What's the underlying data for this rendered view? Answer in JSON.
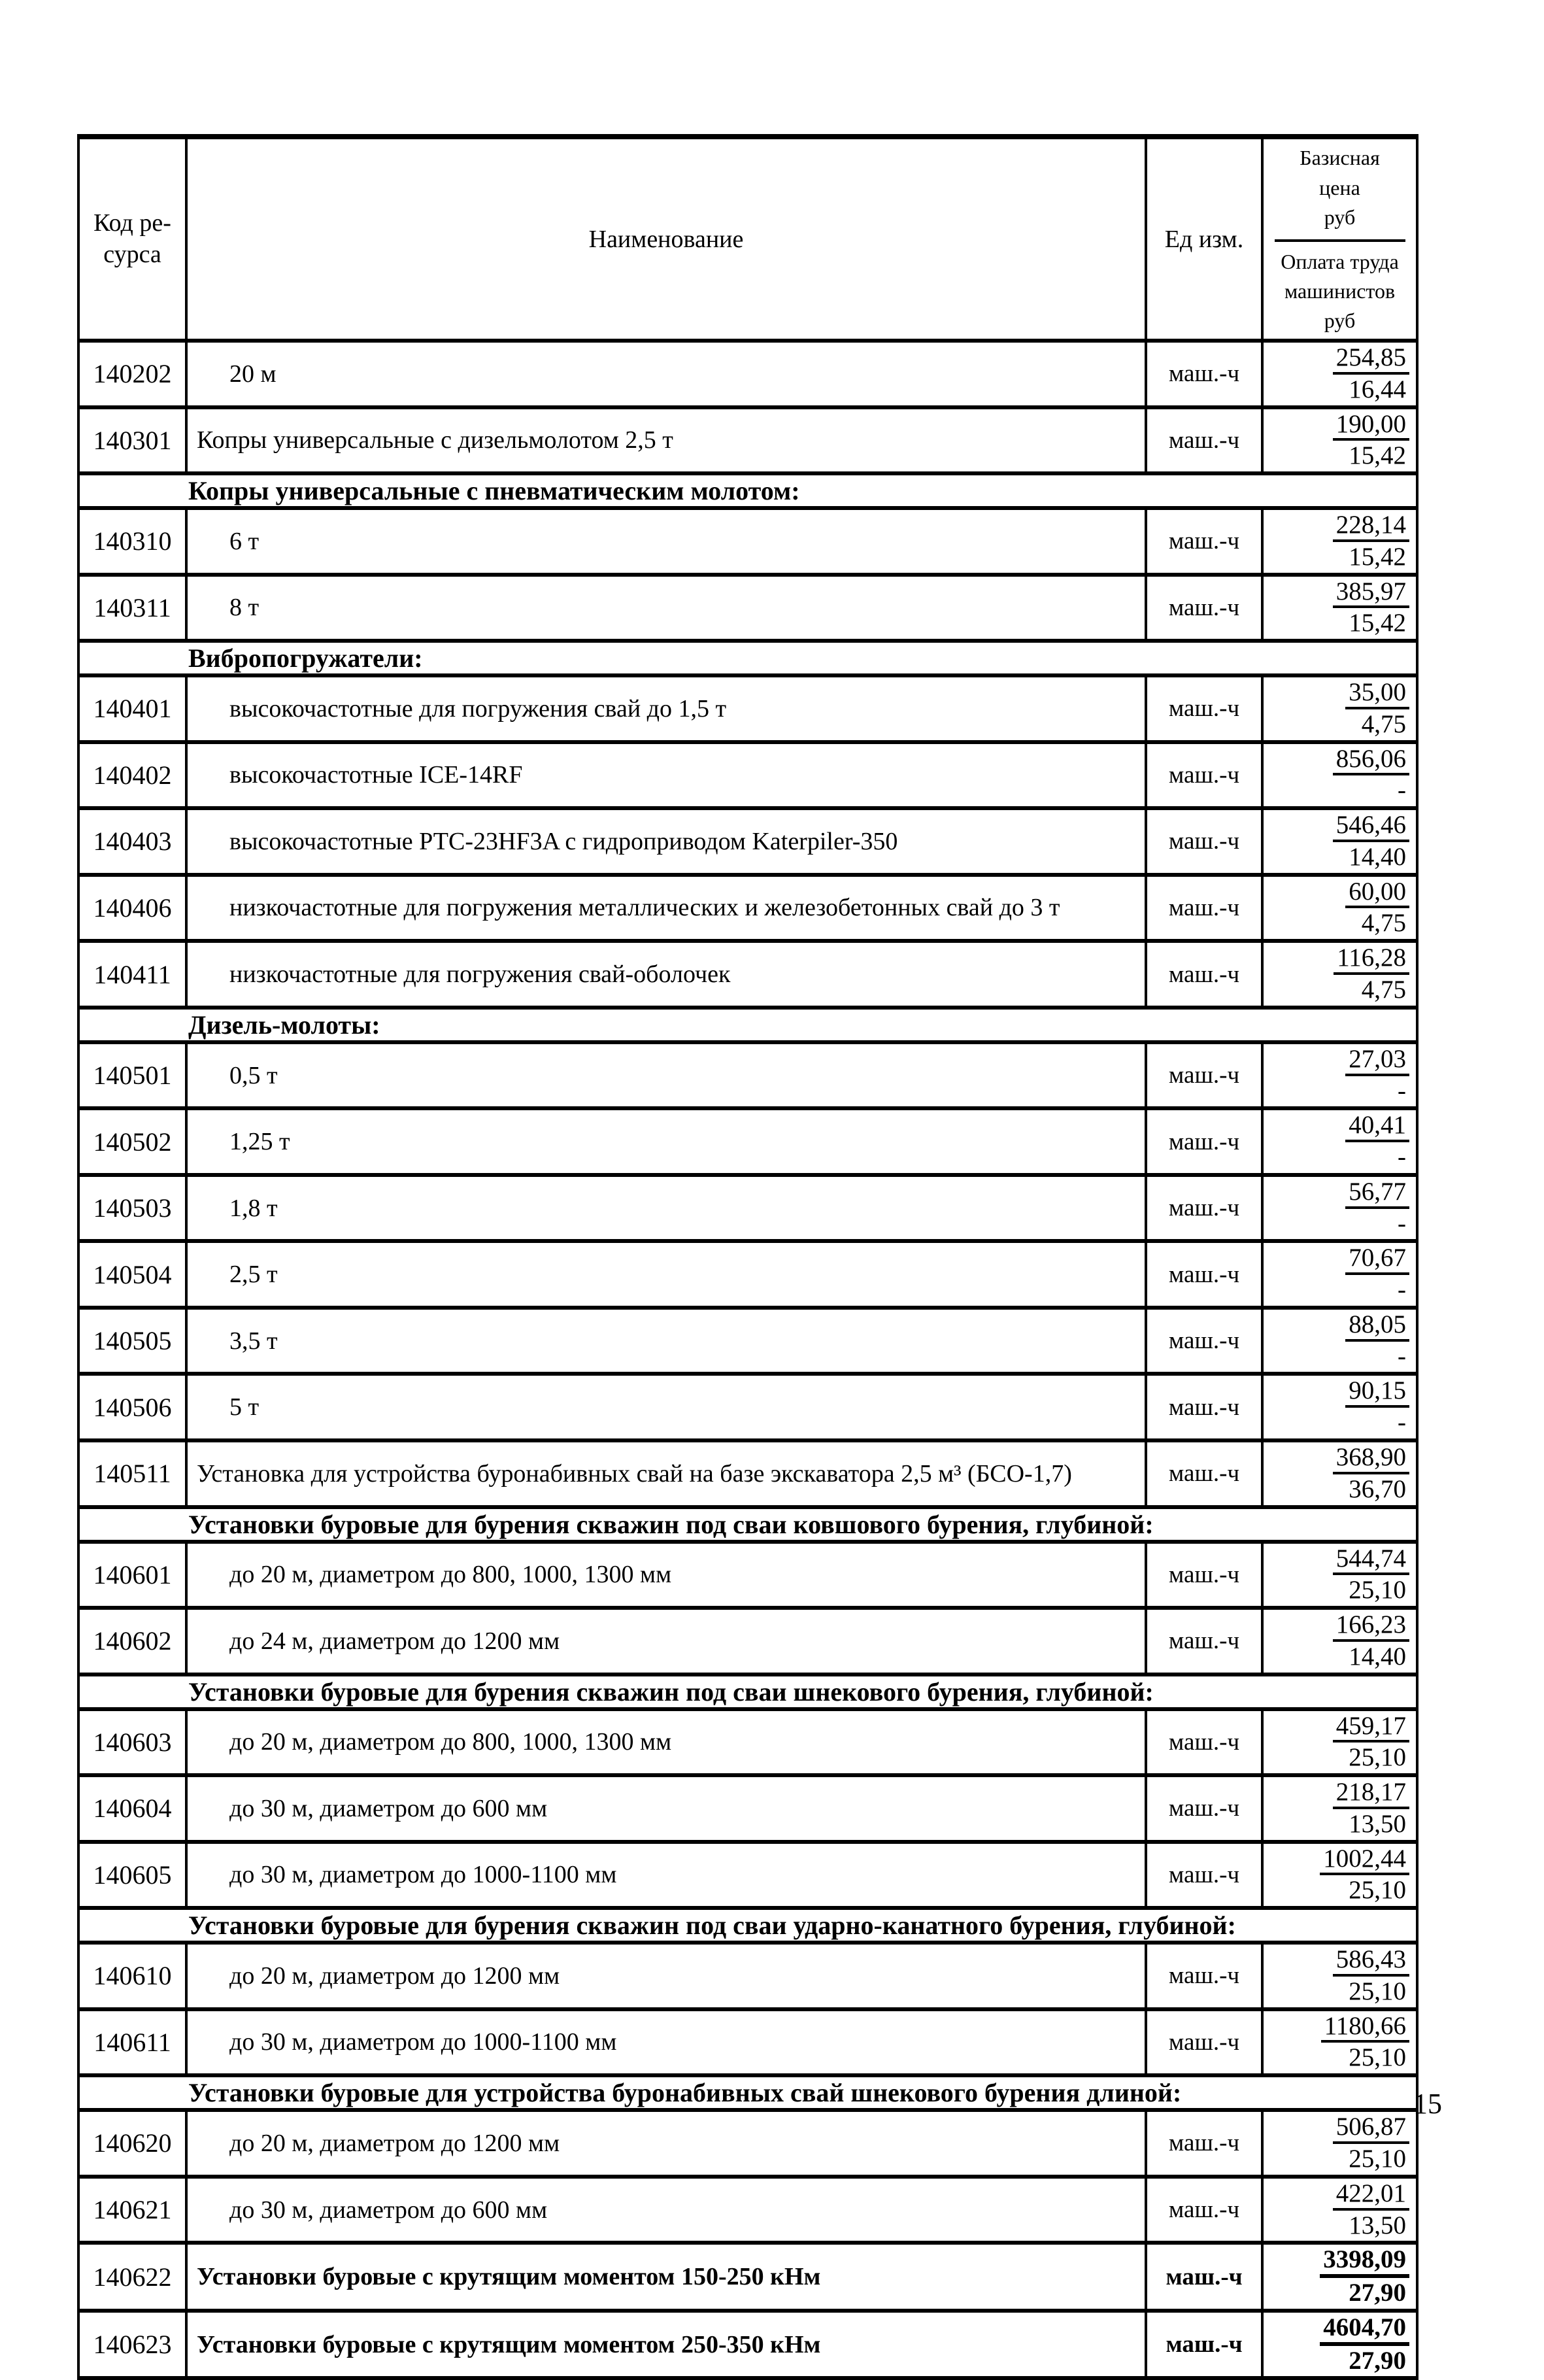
{
  "page_number": "15",
  "table": {
    "headers": {
      "code": "Код ре-\nсурса",
      "name": "Наименование",
      "unit": "Ед изм.",
      "price_top": "Базисная\nцена\nруб",
      "price_bottom": "Оплата труда\nмашинистов\nруб"
    },
    "rows": [
      {
        "type": "item",
        "code": "140202",
        "name": "20 м",
        "indent": true,
        "bold": false,
        "unit": "маш.-ч",
        "base_price": "254,85",
        "machinist_labor": "16,44"
      },
      {
        "type": "item",
        "code": "140301",
        "name": "Копры универсальные с дизельмолотом 2,5 т",
        "indent": false,
        "bold": false,
        "unit": "маш.-ч",
        "base_price": "190,00",
        "machinist_labor": "15,42"
      },
      {
        "type": "section",
        "name": "Копры универсальные с пневматическим молотом:"
      },
      {
        "type": "item",
        "code": "140310",
        "name": "6 т",
        "indent": true,
        "bold": false,
        "unit": "маш.-ч",
        "base_price": "228,14",
        "machinist_labor": "15,42"
      },
      {
        "type": "item",
        "code": "140311",
        "name": "8 т",
        "indent": true,
        "bold": false,
        "unit": "маш.-ч",
        "base_price": "385,97",
        "machinist_labor": "15,42"
      },
      {
        "type": "section",
        "name": "Вибропогружатели:"
      },
      {
        "type": "item",
        "code": "140401",
        "name": "высокочастотные для погружения свай до 1,5 т",
        "indent": true,
        "bold": false,
        "unit": "маш.-ч",
        "base_price": "35,00",
        "machinist_labor": "4,75"
      },
      {
        "type": "item",
        "code": "140402",
        "name": "высокочастотные ICE-14RF",
        "indent": true,
        "bold": false,
        "unit": "маш.-ч",
        "base_price": "856,06",
        "machinist_labor": "-"
      },
      {
        "type": "item",
        "code": "140403",
        "name": "высокочастотные РТС-23HF3A с гидроприводом Katerpiler-350",
        "indent": true,
        "bold": false,
        "unit": "маш.-ч",
        "base_price": "546,46",
        "machinist_labor": "14,40"
      },
      {
        "type": "item",
        "code": "140406",
        "name": "низкочастотные для погружения металлических и железобетонных свай до 3 т",
        "indent": true,
        "bold": false,
        "unit": "маш.-ч",
        "base_price": "60,00",
        "machinist_labor": "4,75"
      },
      {
        "type": "item",
        "code": "140411",
        "name": "низкочастотные для погружения свай-оболочек",
        "indent": true,
        "bold": false,
        "unit": "маш.-ч",
        "base_price": "116,28",
        "machinist_labor": "4,75"
      },
      {
        "type": "section",
        "name": "Дизель-молоты:"
      },
      {
        "type": "item",
        "code": "140501",
        "name": "0,5 т",
        "indent": true,
        "bold": false,
        "unit": "маш.-ч",
        "base_price": "27,03",
        "machinist_labor": "-"
      },
      {
        "type": "item",
        "code": "140502",
        "name": "1,25 т",
        "indent": true,
        "bold": false,
        "unit": "маш.-ч",
        "base_price": "40,41",
        "machinist_labor": "-"
      },
      {
        "type": "item",
        "code": "140503",
        "name": "1,8 т",
        "indent": true,
        "bold": false,
        "unit": "маш.-ч",
        "base_price": "56,77",
        "machinist_labor": "-"
      },
      {
        "type": "item",
        "code": "140504",
        "name": "2,5 т",
        "indent": true,
        "bold": false,
        "unit": "маш.-ч",
        "base_price": "70,67",
        "machinist_labor": "-"
      },
      {
        "type": "item",
        "code": "140505",
        "name": "3,5 т",
        "indent": true,
        "bold": false,
        "unit": "маш.-ч",
        "base_price": "88,05",
        "machinist_labor": "-"
      },
      {
        "type": "item",
        "code": "140506",
        "name": "5 т",
        "indent": true,
        "bold": false,
        "unit": "маш.-ч",
        "base_price": "90,15",
        "machinist_labor": "-"
      },
      {
        "type": "item",
        "code": "140511",
        "name": "Установка для устройства буронабивных свай на базе экскаватора 2,5 м³ (БСО-1,7)",
        "indent": false,
        "bold": false,
        "unit": "маш.-ч",
        "base_price": "368,90",
        "machinist_labor": "36,70"
      },
      {
        "type": "section",
        "name": "Установки буровые для бурения скважин под сваи ковшового бурения, глубиной:"
      },
      {
        "type": "item",
        "code": "140601",
        "name": "до 20 м, диаметром до 800, 1000, 1300 мм",
        "indent": true,
        "bold": false,
        "unit": "маш.-ч",
        "base_price": "544,74",
        "machinist_labor": "25,10"
      },
      {
        "type": "item",
        "code": "140602",
        "name": "до 24 м, диаметром до 1200 мм",
        "indent": true,
        "bold": false,
        "unit": "маш.-ч",
        "base_price": "166,23",
        "machinist_labor": "14,40"
      },
      {
        "type": "section",
        "name": "Установки буровые для бурения скважин под сваи шнекового бурения, глубиной:"
      },
      {
        "type": "item",
        "code": "140603",
        "name": "до 20 м, диаметром до 800, 1000, 1300 мм",
        "indent": true,
        "bold": false,
        "unit": "маш.-ч",
        "base_price": "459,17",
        "machinist_labor": "25,10"
      },
      {
        "type": "item",
        "code": "140604",
        "name": "до 30 м, диаметром до 600 мм",
        "indent": true,
        "bold": false,
        "unit": "маш.-ч",
        "base_price": "218,17",
        "machinist_labor": "13,50"
      },
      {
        "type": "item",
        "code": "140605",
        "name": "до 30 м, диаметром до 1000-1100 мм",
        "indent": true,
        "bold": false,
        "unit": "маш.-ч",
        "base_price": "1002,44",
        "machinist_labor": "25,10"
      },
      {
        "type": "section",
        "name": "Установки буровые для бурения скважин под сваи ударно-канатного бурения, глубиной:"
      },
      {
        "type": "item",
        "code": "140610",
        "name": "до 20 м, диаметром до 1200 мм",
        "indent": true,
        "bold": false,
        "unit": "маш.-ч",
        "base_price": "586,43",
        "machinist_labor": "25,10"
      },
      {
        "type": "item",
        "code": "140611",
        "name": "до 30 м, диаметром до 1000-1100 мм",
        "indent": true,
        "bold": false,
        "unit": "маш.-ч",
        "base_price": "1180,66",
        "machinist_labor": "25,10"
      },
      {
        "type": "section",
        "name": "Установки буровые для устройства буронабивных свай шнекового бурения длиной:"
      },
      {
        "type": "item",
        "code": "140620",
        "name": "до 20 м, диаметром до 1200 мм",
        "indent": true,
        "bold": false,
        "unit": "маш.-ч",
        "base_price": "506,87",
        "machinist_labor": "25,10"
      },
      {
        "type": "item",
        "code": "140621",
        "name": "до 30 м, диаметром до 600 мм",
        "indent": true,
        "bold": false,
        "unit": "маш.-ч",
        "base_price": "422,01",
        "machinist_labor": "13,50"
      },
      {
        "type": "item",
        "code": "140622",
        "name": "Установки буровые с крутящим моментом 150-250 кНм",
        "indent": false,
        "bold": true,
        "unit": "маш.-ч",
        "base_price": "3398,09",
        "machinist_labor": "27,90"
      },
      {
        "type": "item",
        "code": "140623",
        "name": "Установки буровые с крутящим моментом 250-350 кНм",
        "indent": false,
        "bold": true,
        "unit": "маш.-ч",
        "base_price": "4604,70",
        "machinist_labor": "27,90"
      }
    ]
  }
}
